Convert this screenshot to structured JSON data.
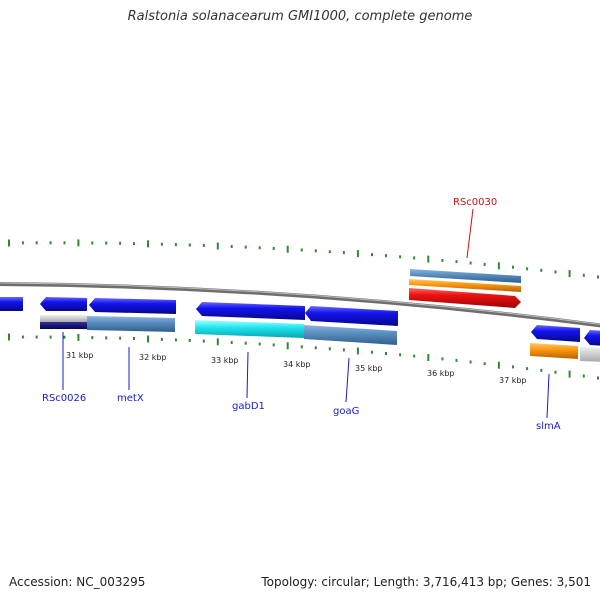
{
  "title": "Ralstonia solanacearum GMI1000, complete genome",
  "footer": {
    "accession": "Accession: NC_003295",
    "summary": "Topology: circular; Length: 3,716,413 bp; Genes: 3,501"
  },
  "colors": {
    "backbone": "#7a7a7a",
    "tick": "#2e8b2e",
    "label_blue": "#1a1acc",
    "label_red": "#cc1111",
    "gene_blue": "#1010e0",
    "gene_red": "#ee1111",
    "gene_steel": "#5a8fc0",
    "gene_cyan": "#22e8f0",
    "gene_orange": "#ff9911",
    "gene_navy": "#0a0a70",
    "gene_gray": "#cccccc"
  },
  "scale_labels": [
    "31 kbp",
    "32 kbp",
    "33 kbp",
    "34 kbp",
    "35 kbp",
    "36 kbp",
    "37 kbp"
  ],
  "gene_labels": [
    {
      "text": "RSc0026",
      "color": "label_blue"
    },
    {
      "text": "metX",
      "color": "label_blue"
    },
    {
      "text": "gabD1",
      "color": "label_blue"
    },
    {
      "text": "goaG",
      "color": "label_blue"
    },
    {
      "text": "RSc0030",
      "color": "label_red"
    },
    {
      "text": "slmA",
      "color": "label_blue"
    }
  ],
  "tracks": {
    "cds_forward": [
      {
        "name": "gene-RSc0026-cds",
        "color": "gene_blue",
        "strand": "+"
      },
      {
        "name": "gene-RSc0030-cds",
        "color": "gene_red",
        "strand": "+"
      }
    ],
    "cds_reverse": [
      {
        "name": "gene-pre-RSc0026",
        "color": "gene_blue",
        "strand": "-"
      },
      {
        "name": "gene-RSc0026",
        "color": "gene_blue",
        "strand": "-"
      },
      {
        "name": "gene-metX",
        "color": "gene_blue",
        "strand": "-"
      },
      {
        "name": "gene-gabD1",
        "color": "gene_blue",
        "strand": "-"
      },
      {
        "name": "gene-goaG",
        "color": "gene_blue",
        "strand": "-"
      },
      {
        "name": "gene-slmA",
        "color": "gene_blue",
        "strand": "-"
      },
      {
        "name": "gene-next",
        "color": "gene_blue",
        "strand": "-"
      }
    ]
  }
}
